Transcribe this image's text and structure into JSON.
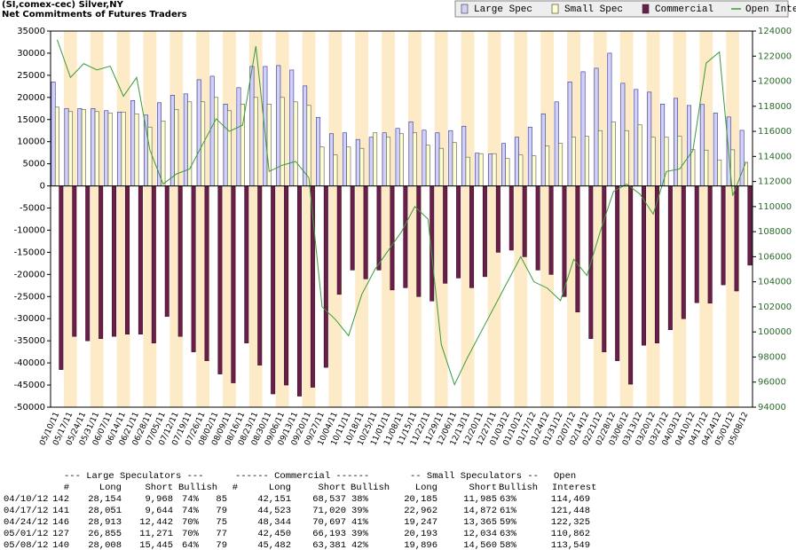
{
  "chart_data": {
    "type": "bar",
    "title": "(SI,comex-cec) Silver,NY",
    "subtitle": "Net Commitments of Futures Traders",
    "categories": [
      "05/10/11",
      "05/17/11",
      "05/24/11",
      "05/31/11",
      "06/07/11",
      "06/14/11",
      "06/21/11",
      "06/28/11",
      "07/05/11",
      "07/12/11",
      "07/19/11",
      "07/26/11",
      "08/02/11",
      "08/09/11",
      "08/16/11",
      "08/23/11",
      "08/30/11",
      "09/06/11",
      "09/13/11",
      "09/20/11",
      "09/27/11",
      "10/04/11",
      "10/11/11",
      "10/18/11",
      "10/25/11",
      "11/01/11",
      "11/08/11",
      "11/15/11",
      "11/22/11",
      "11/29/11",
      "12/06/11",
      "12/13/11",
      "12/20/11",
      "12/27/11",
      "01/03/12",
      "01/10/12",
      "01/17/12",
      "01/24/12",
      "01/31/12",
      "02/07/12",
      "02/14/12",
      "02/21/12",
      "02/28/12",
      "03/06/12",
      "03/13/12",
      "03/20/12",
      "03/27/12",
      "04/03/12",
      "04/10/12",
      "04/17/12",
      "04/24/12",
      "05/01/12",
      "05/08/12"
    ],
    "series": [
      {
        "name": "Large Spec",
        "color": "#d0d0f8",
        "values": [
          23500,
          17500,
          17500,
          17500,
          17000,
          16700,
          19300,
          16000,
          18800,
          20500,
          20800,
          24000,
          24800,
          18500,
          22200,
          27000,
          27000,
          27200,
          26200,
          22600,
          15500,
          11800,
          12000,
          10500,
          11000,
          12000,
          13000,
          14500,
          12600,
          12000,
          12500,
          13500,
          7400,
          7200,
          9600,
          11000,
          13300,
          16300,
          19000,
          23500,
          25800,
          26600,
          30000,
          23200,
          21800,
          21200,
          18500,
          19800,
          18186,
          18407,
          16471,
          15584,
          12563
        ]
      },
      {
        "name": "Small Spec",
        "color": "#fffed0",
        "values": [
          17800,
          16800,
          17300,
          16800,
          16500,
          16700,
          16300,
          13300,
          14700,
          17300,
          19000,
          19000,
          20000,
          17000,
          18500,
          20000,
          18500,
          20000,
          19000,
          18200,
          8800,
          7000,
          8800,
          8500,
          12000,
          11000,
          11800,
          12000,
          9200,
          8500,
          9800,
          6500,
          7300,
          7300,
          6200,
          7000,
          6800,
          9000,
          9600,
          11000,
          11200,
          12500,
          14500,
          12500,
          13800,
          11000,
          11000,
          11200,
          8200,
          8090,
          5882,
          8159,
          5336
        ]
      },
      {
        "name": "Commercial",
        "color": "#6a1f4a",
        "values": [
          -41500,
          -34000,
          -35000,
          -34500,
          -34000,
          -33500,
          -33500,
          -35500,
          -29500,
          -34000,
          -37500,
          -39500,
          -42500,
          -44500,
          -35500,
          -40500,
          -47000,
          -45000,
          -47500,
          -45500,
          -41000,
          -24500,
          -19000,
          -21000,
          -19000,
          -23500,
          -23000,
          -25000,
          -26000,
          -22000,
          -20800,
          -23000,
          -20500,
          -15000,
          -14500,
          -16000,
          -19000,
          -20000,
          -25000,
          -28500,
          -34500,
          -37500,
          -39500,
          -44800,
          -36000,
          -35500,
          -32500,
          -30000,
          -26386,
          -26497,
          -22353,
          -23743,
          -17899
        ]
      },
      {
        "name": "Open Interest",
        "type": "line",
        "axis": "y2",
        "color": "#3a9a3a",
        "values": [
          123300,
          120300,
          121400,
          120900,
          121200,
          118800,
          120300,
          114500,
          111800,
          112600,
          113000,
          115000,
          117000,
          116000,
          116500,
          122800,
          112800,
          113300,
          113600,
          112300,
          102000,
          101000,
          99700,
          103000,
          105000,
          106500,
          108000,
          110000,
          109000,
          99000,
          95800,
          98000,
          100000,
          102000,
          104000,
          106000,
          104000,
          103500,
          102500,
          105800,
          104500,
          108000,
          111200,
          111800,
          111000,
          109400,
          112800,
          113000,
          114469,
          121448,
          122325,
          110862,
          113549
        ]
      }
    ],
    "ylim": [
      -50000,
      35000
    ],
    "yticks": [
      -50000,
      -45000,
      -40000,
      -35000,
      -30000,
      -25000,
      -20000,
      -15000,
      -10000,
      -5000,
      0,
      5000,
      10000,
      15000,
      20000,
      25000,
      30000,
      35000
    ],
    "y2lim": [
      94000,
      124000
    ],
    "y2ticks": [
      94000,
      96000,
      98000,
      100000,
      102000,
      104000,
      106000,
      108000,
      110000,
      112000,
      114000,
      116000,
      118000,
      120000,
      122000,
      124000
    ],
    "legend": "top-right"
  },
  "table": {
    "groups": [
      "--- Large Speculators ---",
      "------ Commercial ------",
      "-- Small Speculators --",
      "Open"
    ],
    "columns": [
      "#",
      "Long",
      "Short",
      "Bullish",
      "#",
      "Long",
      "Short",
      "Bullish",
      "Long",
      "Short",
      "Bullish",
      "Interest"
    ],
    "rows": [
      [
        "04/10/12",
        "142",
        "28,154",
        "9,968",
        "74%",
        "85",
        "42,151",
        "68,537",
        "38%",
        "20,185",
        "11,985",
        "63%",
        "114,469"
      ],
      [
        "04/17/12",
        "141",
        "28,051",
        "9,644",
        "74%",
        "79",
        "44,523",
        "71,020",
        "39%",
        "22,962",
        "14,872",
        "61%",
        "121,448"
      ],
      [
        "04/24/12",
        "146",
        "28,913",
        "12,442",
        "70%",
        "75",
        "48,344",
        "70,697",
        "41%",
        "19,247",
        "13,365",
        "59%",
        "122,325"
      ],
      [
        "05/01/12",
        "127",
        "26,855",
        "11,271",
        "70%",
        "77",
        "42,450",
        "66,193",
        "39%",
        "20,193",
        "12,034",
        "63%",
        "110,862"
      ],
      [
        "05/08/12",
        "140",
        "28,008",
        "15,445",
        "64%",
        "79",
        "45,482",
        "63,381",
        "42%",
        "19,896",
        "14,560",
        "58%",
        "113,549"
      ]
    ]
  }
}
